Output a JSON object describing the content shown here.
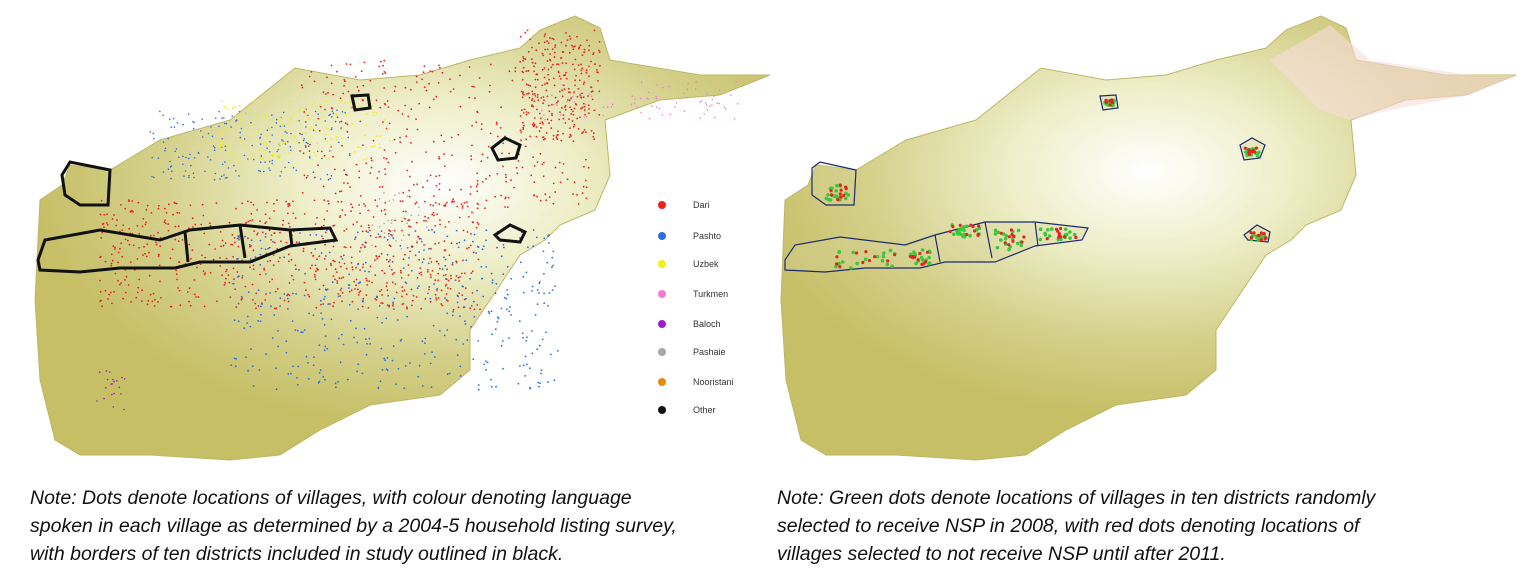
{
  "legend": {
    "items": [
      {
        "label": "Dari",
        "color": "#e8231f"
      },
      {
        "label": "Pashto",
        "color": "#2b6fe0"
      },
      {
        "label": "Uzbek",
        "color": "#f2ef1a"
      },
      {
        "label": "Turkmen",
        "color": "#f27ad3"
      },
      {
        "label": "Baloch",
        "color": "#a11ac9"
      },
      {
        "label": "Pashaie",
        "color": "#a8a8a8"
      },
      {
        "label": "Nooristani",
        "color": "#e68a0c"
      },
      {
        "label": "Other",
        "color": "#111111"
      }
    ]
  },
  "notes": {
    "left": [
      "Note: Dots denote locations of villages, with colour denoting language",
      "spoken in each village as determined by a 2004-5 household listing survey,",
      "with borders of ten districts included in study outlined in black."
    ],
    "right": [
      "Note: Green dots denote locations of villages in ten districts randomly",
      "selected to receive NSP in 2008, with red dots denoting locations of",
      "villages selected to not receive NSP until after 2011."
    ]
  },
  "colors": {
    "terrain_low": "#c9c36a",
    "terrain_mid": "#dcdca0",
    "terrain_high": "#ffffff",
    "mountain_pink": "#f8dcdc",
    "treatment": "#3cc83c",
    "control": "#e8231f",
    "district_border_left": "#111111",
    "district_border_right": "#1c2a6e"
  }
}
